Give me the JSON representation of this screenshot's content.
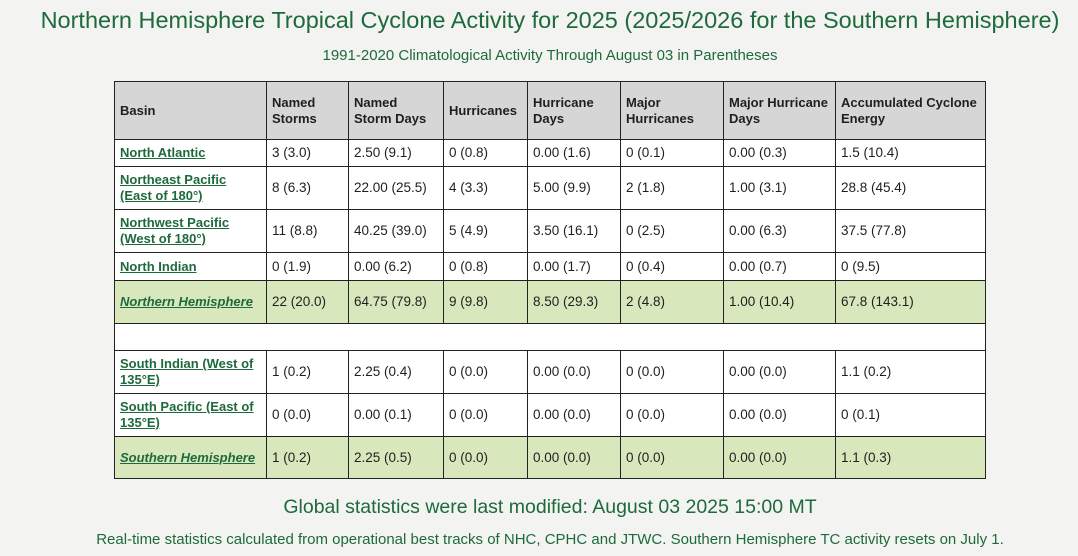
{
  "header": {
    "title": "Northern Hemisphere Tropical Cyclone Activity for 2025 (2025/2026 for the Southern Hemisphere)",
    "subtitle": "1991-2020 Climatological Activity Through August 03 in Parentheses"
  },
  "table": {
    "columns": [
      "Basin",
      "Named Storms",
      "Named Storm Days",
      "Hurricanes",
      "Hurricane Days",
      "Major Hurricanes",
      "Major Hurricane Days",
      "Accumulated Cyclone Energy"
    ],
    "rows": [
      {
        "basin": "North Atlantic",
        "values": [
          "3 (3.0)",
          "2.50 (9.1)",
          "0 (0.8)",
          "0.00 (1.6)",
          "0 (0.1)",
          "0.00 (0.3)",
          "1.5 (10.4)"
        ]
      },
      {
        "basin": "Northeast Pacific (East of 180°)",
        "values": [
          "8 (6.3)",
          "22.00 (25.5)",
          "4 (3.3)",
          "5.00 (9.9)",
          "2 (1.8)",
          "1.00 (3.1)",
          "28.8 (45.4)"
        ]
      },
      {
        "basin": "Northwest Pacific (West of 180°)",
        "values": [
          "11 (8.8)",
          "40.25 (39.0)",
          "5 (4.9)",
          "3.50 (16.1)",
          "0 (2.5)",
          "0.00 (6.3)",
          "37.5 (77.8)"
        ]
      },
      {
        "basin": "North Indian",
        "values": [
          "0 (1.9)",
          "0.00 (6.2)",
          "0 (0.8)",
          "0.00 (1.7)",
          "0 (0.4)",
          "0.00 (0.7)",
          "0 (9.5)"
        ]
      },
      {
        "basin": "Northern Hemisphere",
        "values": [
          "22 (20.0)",
          "64.75 (79.8)",
          "9 (9.8)",
          "8.50 (29.3)",
          "2 (4.8)",
          "1.00 (10.4)",
          "67.8 (143.1)"
        ]
      },
      {
        "basin": "South Indian (West of 135°E)",
        "values": [
          "1 (0.2)",
          "2.25 (0.4)",
          "0 (0.0)",
          "0.00 (0.0)",
          "0 (0.0)",
          "0.00 (0.0)",
          "1.1 (0.2)"
        ]
      },
      {
        "basin": "South Pacific (East of 135°E)",
        "values": [
          "0 (0.0)",
          "0.00 (0.1)",
          "0 (0.0)",
          "0.00 (0.0)",
          "0 (0.0)",
          "0.00 (0.0)",
          "0 (0.1)"
        ]
      },
      {
        "basin": "Southern Hemisphere",
        "values": [
          "1 (0.2)",
          "2.25 (0.5)",
          "0 (0.0)",
          "0.00 (0.0)",
          "0 (0.0)",
          "0.00 (0.0)",
          "1.1 (0.3)"
        ]
      }
    ]
  },
  "footer": {
    "modified": "Global statistics were last modified: August 03 2025 15:00 MT",
    "note": "Real-time statistics calculated from operational best tracks of NHC, CPHC and JTWC. Southern Hemisphere TC activity resets on July 1."
  },
  "colors": {
    "accent_green": "#1e6a3c",
    "header_gray": "#d6d6d6",
    "summary_row_green": "#d9e7bd",
    "page_background": "#f3f3f1"
  }
}
